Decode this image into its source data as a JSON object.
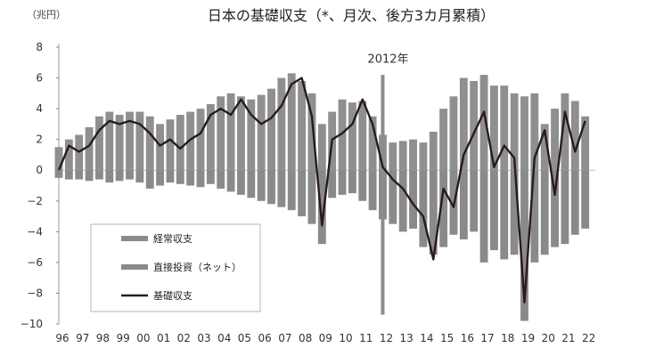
{
  "chart_data": {
    "type": "bar",
    "title": "日本の基礎収支（*、月次、後方3カ月累積）",
    "unit_label": "（兆円）",
    "xlabel": "",
    "ylabel": "",
    "ylim": [
      -10,
      8
    ],
    "yticks": [
      8,
      6,
      4,
      2,
      0,
      -2,
      -4,
      -6,
      -8,
      -10
    ],
    "yticks_labels": [
      "8",
      "6",
      "4",
      "2",
      "0",
      "−2",
      "−4",
      "−6",
      "−8",
      "−10"
    ],
    "x_range": [
      1996,
      2022.5
    ],
    "xticks": [
      1996,
      1997,
      1998,
      1999,
      2000,
      2001,
      2002,
      2003,
      2004,
      2005,
      2006,
      2007,
      2008,
      2009,
      2010,
      2011,
      2012,
      2013,
      2014,
      2015,
      2016,
      2017,
      2018,
      2019,
      2020,
      2021,
      2022
    ],
    "xticks_labels": [
      "96",
      "97",
      "98",
      "99",
      "00",
      "01",
      "02",
      "03",
      "04",
      "05",
      "06",
      "07",
      "08",
      "09",
      "10",
      "11",
      "12",
      "13",
      "14",
      "15",
      "16",
      "17",
      "18",
      "19",
      "20",
      "21",
      "22"
    ],
    "annotation": {
      "text": "2012年",
      "x": 2012.0,
      "line_bottom": -9.4
    },
    "legend": {
      "position": "bottom-left",
      "entries": [
        {
          "name": "経常収支",
          "color": "#8a8a8a",
          "kind": "bar"
        },
        {
          "name": "直接投資（ネット）",
          "color": "#8a8a8a",
          "kind": "bar"
        },
        {
          "name": "基礎収支",
          "color": "#2a1a1a",
          "kind": "line"
        }
      ]
    },
    "colors": {
      "current_account": "#8f8f8f",
      "fdi": "#8a8a8a",
      "basic_balance": "#2a1a1a",
      "annotation_line": "#8c8c8c"
    },
    "series": [
      {
        "name": "経常収支",
        "kind": "bar",
        "x": [
          1996.0,
          1996.5,
          1997.0,
          1997.5,
          1998.0,
          1998.5,
          1999.0,
          1999.5,
          2000.0,
          2000.5,
          2001.0,
          2001.5,
          2002.0,
          2002.5,
          2003.0,
          2003.5,
          2004.0,
          2004.5,
          2005.0,
          2005.5,
          2006.0,
          2006.5,
          2007.0,
          2007.5,
          2008.0,
          2008.5,
          2009.0,
          2009.5,
          2010.0,
          2010.5,
          2011.0,
          2011.5,
          2012.0,
          2012.5,
          2013.0,
          2013.5,
          2014.0,
          2014.5,
          2015.0,
          2015.5,
          2016.0,
          2016.5,
          2017.0,
          2017.5,
          2018.0,
          2018.5,
          2019.0,
          2019.5,
          2020.0,
          2020.5,
          2021.0,
          2021.5,
          2022.0
        ],
        "values": [
          1.5,
          2.0,
          2.3,
          2.8,
          3.5,
          3.8,
          3.6,
          3.8,
          3.8,
          3.5,
          3.0,
          3.3,
          3.6,
          3.8,
          4.0,
          4.3,
          4.8,
          5.0,
          4.8,
          4.6,
          4.9,
          5.3,
          6.0,
          6.3,
          5.8,
          5.0,
          3.0,
          3.8,
          4.6,
          4.4,
          4.5,
          3.5,
          2.3,
          1.8,
          1.9,
          2.0,
          1.8,
          2.5,
          4.0,
          4.8,
          6.0,
          5.8,
          6.2,
          5.5,
          5.5,
          5.0,
          4.8,
          5.0,
          3.0,
          4.0,
          5.0,
          4.5,
          3.5
        ]
      },
      {
        "name": "直接投資（ネット）",
        "kind": "bar",
        "x": [
          1996.0,
          1996.5,
          1997.0,
          1997.5,
          1998.0,
          1998.5,
          1999.0,
          1999.5,
          2000.0,
          2000.5,
          2001.0,
          2001.5,
          2002.0,
          2002.5,
          2003.0,
          2003.5,
          2004.0,
          2004.5,
          2005.0,
          2005.5,
          2006.0,
          2006.5,
          2007.0,
          2007.5,
          2008.0,
          2008.5,
          2009.0,
          2009.5,
          2010.0,
          2010.5,
          2011.0,
          2011.5,
          2012.0,
          2012.5,
          2013.0,
          2013.5,
          2014.0,
          2014.5,
          2015.0,
          2015.5,
          2016.0,
          2016.5,
          2017.0,
          2017.5,
          2018.0,
          2018.5,
          2019.0,
          2019.5,
          2020.0,
          2020.5,
          2021.0,
          2021.5,
          2022.0
        ],
        "values": [
          -0.5,
          -0.6,
          -0.6,
          -0.7,
          -0.6,
          -0.8,
          -0.7,
          -0.6,
          -0.8,
          -1.2,
          -1.0,
          -0.8,
          -0.9,
          -1.0,
          -1.1,
          -0.9,
          -1.2,
          -1.4,
          -1.6,
          -1.8,
          -2.0,
          -2.2,
          -2.4,
          -2.6,
          -3.0,
          -3.5,
          -4.8,
          -1.8,
          -1.6,
          -1.5,
          -2.0,
          -2.6,
          -3.2,
          -3.5,
          -4.0,
          -3.8,
          -5.0,
          -5.5,
          -5.0,
          -4.2,
          -4.5,
          -4.0,
          -6.0,
          -5.2,
          -5.8,
          -5.5,
          -9.8,
          -6.0,
          -5.5,
          -5.0,
          -4.8,
          -4.2,
          -3.8
        ]
      },
      {
        "name": "基礎収支",
        "kind": "line",
        "x": [
          1996.0,
          1996.5,
          1997.0,
          1997.5,
          1998.0,
          1998.5,
          1999.0,
          1999.5,
          2000.0,
          2000.5,
          2001.0,
          2001.5,
          2002.0,
          2002.5,
          2003.0,
          2003.5,
          2004.0,
          2004.5,
          2005.0,
          2005.5,
          2006.0,
          2006.5,
          2007.0,
          2007.5,
          2008.0,
          2008.5,
          2009.0,
          2009.5,
          2010.0,
          2010.5,
          2011.0,
          2011.5,
          2012.0,
          2012.5,
          2013.0,
          2013.5,
          2014.0,
          2014.5,
          2015.0,
          2015.5,
          2016.0,
          2016.5,
          2017.0,
          2017.5,
          2018.0,
          2018.5,
          2019.0,
          2019.5,
          2020.0,
          2020.5,
          2021.0,
          2021.5,
          2022.0
        ],
        "values": [
          0.0,
          1.6,
          1.2,
          1.6,
          2.6,
          3.2,
          3.0,
          3.2,
          3.0,
          2.4,
          1.6,
          2.0,
          1.4,
          2.0,
          2.4,
          3.6,
          4.0,
          3.6,
          4.6,
          3.6,
          3.0,
          3.4,
          4.2,
          5.6,
          6.0,
          3.5,
          -3.6,
          2.0,
          2.4,
          3.0,
          4.6,
          3.0,
          0.2,
          -0.6,
          -1.2,
          -2.2,
          -3.0,
          -5.8,
          -1.2,
          -2.4,
          1.0,
          2.4,
          3.8,
          0.2,
          1.6,
          0.8,
          -8.6,
          0.8,
          2.6,
          -1.6,
          3.8,
          1.2,
          3.2
        ]
      }
    ]
  }
}
